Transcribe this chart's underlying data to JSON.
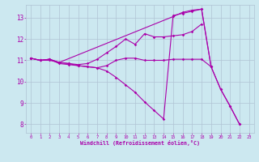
{
  "xlabel": "Windchill (Refroidissement éolien,°C)",
  "bg_color": "#cce8f0",
  "grid_color": "#b0c4d4",
  "line_color": "#aa00aa",
  "xlim": [
    -0.5,
    23.5
  ],
  "ylim": [
    7.6,
    13.6
  ],
  "xticks": [
    0,
    1,
    2,
    3,
    4,
    5,
    6,
    7,
    8,
    9,
    10,
    11,
    12,
    13,
    14,
    15,
    16,
    17,
    18,
    19,
    20,
    21,
    22,
    23
  ],
  "yticks": [
    8,
    9,
    10,
    11,
    12,
    13
  ],
  "lines": [
    {
      "x": [
        0,
        1,
        2,
        3,
        4,
        5,
        6,
        7,
        8,
        9,
        10,
        11,
        12,
        13,
        14,
        15,
        16,
        17,
        18,
        19
      ],
      "y": [
        11.1,
        11.0,
        11.05,
        10.85,
        10.8,
        10.75,
        10.7,
        10.65,
        10.75,
        11.0,
        11.1,
        11.1,
        11.0,
        11.0,
        11.0,
        11.05,
        11.05,
        11.05,
        11.05,
        10.7
      ]
    },
    {
      "x": [
        0,
        1,
        2,
        3,
        4,
        5,
        6,
        7,
        8,
        9,
        10,
        11,
        12,
        13,
        14,
        15,
        16,
        17,
        18
      ],
      "y": [
        11.1,
        11.0,
        11.05,
        10.9,
        10.85,
        10.8,
        10.85,
        11.05,
        11.35,
        11.65,
        12.0,
        11.75,
        12.25,
        12.1,
        12.1,
        12.15,
        12.2,
        12.35,
        12.7
      ]
    },
    {
      "x": [
        0,
        1,
        2,
        3,
        4,
        5,
        6,
        7,
        8,
        9,
        10,
        11,
        12,
        13,
        14,
        15,
        16,
        17,
        18,
        19,
        20,
        21,
        22
      ],
      "y": [
        11.1,
        11.0,
        11.0,
        10.9,
        10.85,
        10.75,
        10.7,
        10.65,
        10.5,
        10.2,
        9.85,
        9.5,
        9.05,
        8.65,
        8.25,
        13.1,
        13.2,
        13.3,
        13.4,
        10.7,
        9.65,
        8.85,
        8.0
      ]
    },
    {
      "x": [
        0,
        1,
        2,
        3,
        15,
        16,
        17,
        18,
        19,
        20,
        21,
        22
      ],
      "y": [
        11.1,
        11.0,
        11.05,
        10.9,
        13.05,
        13.25,
        13.35,
        13.4,
        10.7,
        9.65,
        8.85,
        8.0
      ]
    }
  ]
}
